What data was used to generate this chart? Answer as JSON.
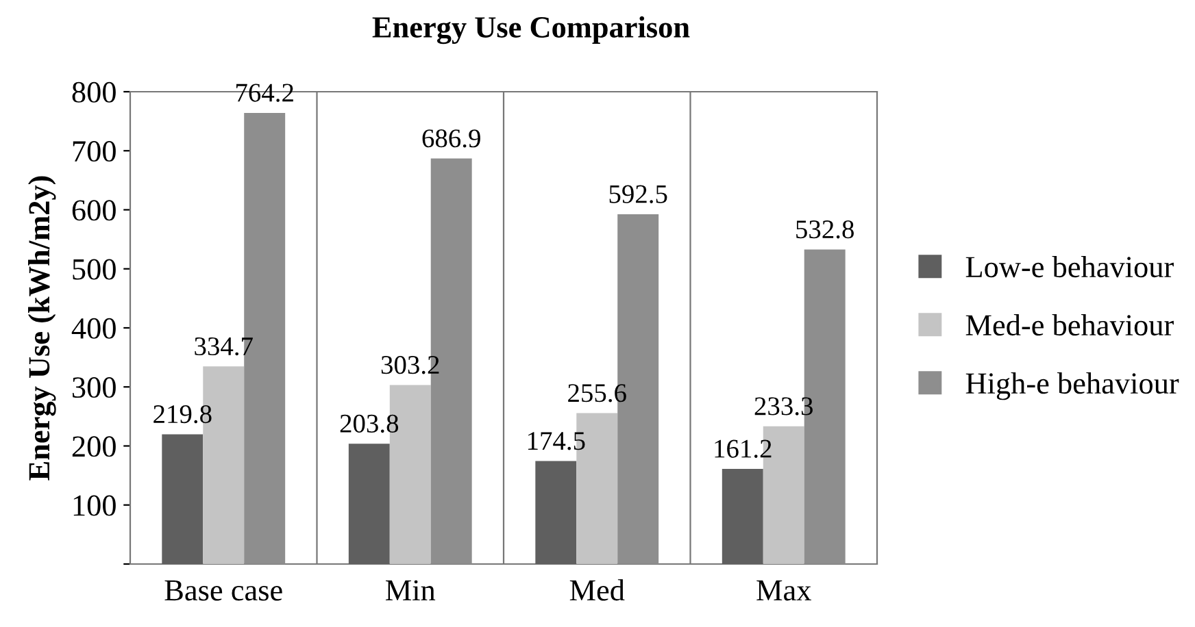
{
  "chart_data": {
    "type": "bar",
    "title": "Energy Use Comparison",
    "ylabel": "Energy Use (kWh/m2y)",
    "categories": [
      "Base case",
      "Min",
      "Med",
      "Max"
    ],
    "series": [
      {
        "name": "Low-e behaviour",
        "color": "#5f5f5f",
        "values": [
          219.8,
          203.8,
          174.5,
          161.2
        ]
      },
      {
        "name": "Med-e behaviour",
        "color": "#c4c4c4",
        "values": [
          334.7,
          303.2,
          255.6,
          233.3
        ]
      },
      {
        "name": "High-e behaviour",
        "color": "#8e8e8e",
        "values": [
          764.2,
          686.9,
          592.5,
          532.8
        ]
      }
    ],
    "ylim": [
      0,
      800
    ],
    "yticks": [
      {
        "value": 0,
        "label": null
      },
      100,
      200,
      300,
      400,
      500,
      600,
      700,
      800
    ],
    "grid": "x",
    "legend": "right",
    "data_labels": true
  }
}
